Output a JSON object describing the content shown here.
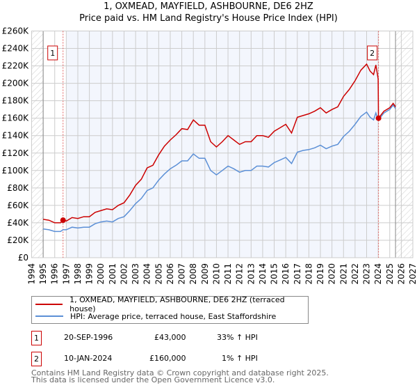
{
  "chart_data": {
    "type": "line",
    "title": "1, OXMEAD, MAYFIELD, ASHBOURNE, DE6 2HZ",
    "subtitle": "Price paid vs. HM Land Registry's House Price Index (HPI)",
    "xlim": [
      1994,
      2027
    ],
    "ylim": [
      0,
      260000
    ],
    "grid": true,
    "y_ticks": [
      0,
      20000,
      40000,
      60000,
      80000,
      100000,
      120000,
      140000,
      160000,
      180000,
      200000,
      220000,
      240000,
      260000
    ],
    "y_tick_labels": [
      "£0",
      "£20K",
      "£40K",
      "£60K",
      "£80K",
      "£100K",
      "£120K",
      "£140K",
      "£160K",
      "£180K",
      "£200K",
      "£220K",
      "£240K",
      "£260K"
    ],
    "x_ticks": [
      "1994",
      "1995",
      "1996",
      "1997",
      "1998",
      "1999",
      "2000",
      "2001",
      "2002",
      "2003",
      "2004",
      "2005",
      "2006",
      "2007",
      "2008",
      "2009",
      "2010",
      "2011",
      "2012",
      "2013",
      "2014",
      "2015",
      "2016",
      "2017",
      "2018",
      "2019",
      "2020",
      "2021",
      "2022",
      "2023",
      "2024",
      "2025",
      "2026",
      "2027"
    ],
    "x": [
      1995,
      1995.5,
      1996,
      1996.5,
      1996.72,
      1997,
      1997.5,
      1998,
      1998.5,
      1999,
      1999.5,
      2000,
      2000.5,
      2001,
      2001.5,
      2002,
      2002.5,
      2003,
      2003.5,
      2004,
      2004.5,
      2005,
      2005.5,
      2006,
      2006.5,
      2007,
      2007.5,
      2008,
      2008.5,
      2009,
      2009.5,
      2010,
      2010.5,
      2011,
      2011.5,
      2012,
      2012.5,
      2013,
      2013.5,
      2014,
      2014.5,
      2015,
      2015.5,
      2016,
      2016.5,
      2017,
      2017.5,
      2018,
      2018.5,
      2019,
      2019.5,
      2020,
      2020.5,
      2021,
      2021.5,
      2022,
      2022.5,
      2023,
      2023.3,
      2023.6,
      2023.8,
      2024.0,
      2024.03,
      2024.5,
      2025,
      2025.3,
      2025.5
    ],
    "series": [
      {
        "name": "1, OXMEAD, MAYFIELD, ASHBOURNE, DE6 2HZ (terraced house)",
        "color": "#cc0000",
        "values": [
          44000,
          43000,
          40000,
          40000,
          43000,
          42000,
          46000,
          45000,
          47000,
          47000,
          52000,
          54000,
          56000,
          55000,
          60000,
          63000,
          72000,
          83000,
          90000,
          103000,
          106000,
          118000,
          128000,
          135000,
          141000,
          148000,
          147000,
          158000,
          152000,
          152000,
          133000,
          127000,
          133000,
          140000,
          135000,
          130000,
          133000,
          133000,
          140000,
          140000,
          138000,
          145000,
          149000,
          153000,
          143000,
          161000,
          163000,
          165000,
          168000,
          172000,
          166000,
          170000,
          173000,
          185000,
          193000,
          203000,
          215000,
          222000,
          214000,
          210000,
          221000,
          205000,
          160000,
          168000,
          172000,
          177000,
          173000
        ]
      },
      {
        "name": "HPI: Average price, terraced house, East Staffordshire",
        "color": "#5b8fd6",
        "values": [
          33000,
          32000,
          30000,
          30000,
          32000,
          32000,
          35000,
          34000,
          35000,
          35000,
          39000,
          41000,
          42000,
          41000,
          45000,
          47000,
          54000,
          62000,
          68000,
          77000,
          80000,
          89000,
          96000,
          102000,
          106000,
          111000,
          111000,
          119000,
          114000,
          114000,
          100000,
          95000,
          100000,
          105000,
          102000,
          98000,
          100000,
          100000,
          105000,
          105000,
          104000,
          109000,
          112000,
          115000,
          108000,
          121000,
          123000,
          124000,
          126000,
          129000,
          125000,
          128000,
          130000,
          139000,
          145000,
          153000,
          162000,
          167000,
          161000,
          158000,
          166000,
          158000,
          158000,
          166000,
          170000,
          175000,
          171000
        ]
      }
    ],
    "sales": [
      {
        "label": "1",
        "year": 1996.72,
        "value": 43000,
        "date": "20-SEP-1996",
        "price": "£43,000",
        "hpi": "33% ↑ HPI"
      },
      {
        "label": "2",
        "year": 2024.03,
        "value": 160000,
        "date": "10-JAN-2024",
        "price": "£160,000",
        "hpi": "1% ↑ HPI"
      }
    ],
    "legend_placement": "below"
  },
  "footer": {
    "line1": "Contains HM Land Registry data © Crown copyright and database right 2025.",
    "line2": "This data is licensed under the Open Government Licence v3.0."
  }
}
